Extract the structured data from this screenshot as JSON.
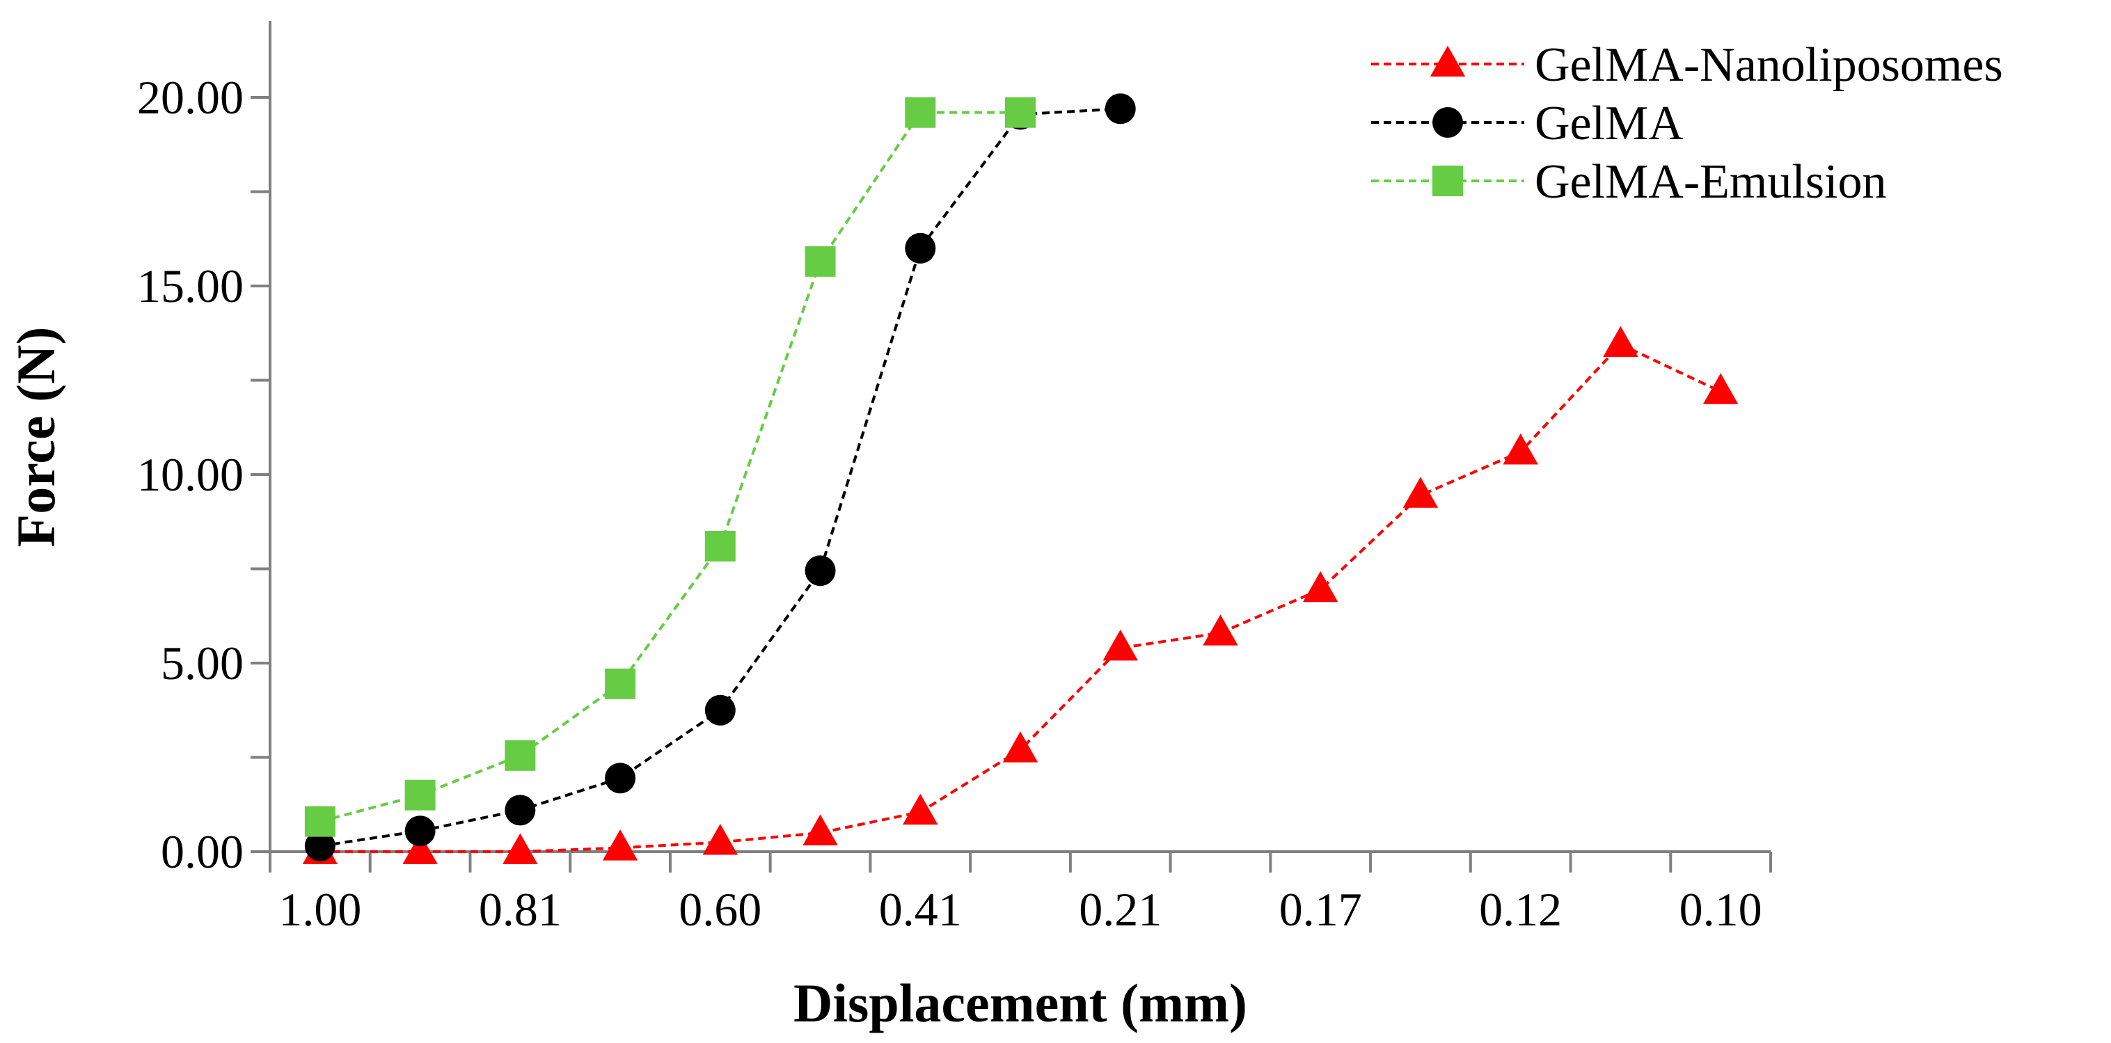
{
  "chart_data": {
    "type": "line",
    "title": "",
    "xlabel": "Displacement (mm)",
    "ylabel": "Force (N)",
    "x_tick_labels": [
      "1.00",
      "0.81",
      "0.60",
      "0.41",
      "0.21",
      "0.17",
      "0.12",
      "0.10"
    ],
    "x_positions": 15,
    "ylim": [
      0,
      22
    ],
    "y_ticks": [
      {
        "value": 0,
        "label": "0.00"
      },
      {
        "value": 5,
        "label": "5.00"
      },
      {
        "value": 10,
        "label": "10.00"
      },
      {
        "value": 15,
        "label": "15.00"
      },
      {
        "value": 20,
        "label": "20.00"
      }
    ],
    "legend_position": "top-right",
    "series": [
      {
        "name": "GelMA-Nanoliposomes",
        "color": "#ff0000",
        "marker": "triangle",
        "values": [
          0.0,
          0.0,
          0.0,
          0.1,
          0.25,
          0.5,
          1.05,
          2.7,
          5.4,
          5.8,
          6.95,
          9.45,
          10.6,
          13.45,
          12.2
        ]
      },
      {
        "name": "GelMA",
        "color": "#000000",
        "marker": "circle",
        "values": [
          0.15,
          0.55,
          1.1,
          1.95,
          3.75,
          7.45,
          16.0,
          19.55,
          19.7
        ]
      },
      {
        "name": "GelMA-Emulsion",
        "color": "#66cc44",
        "marker": "square",
        "values": [
          0.8,
          1.5,
          2.55,
          4.45,
          8.1,
          15.65,
          19.6,
          19.6
        ]
      }
    ]
  }
}
